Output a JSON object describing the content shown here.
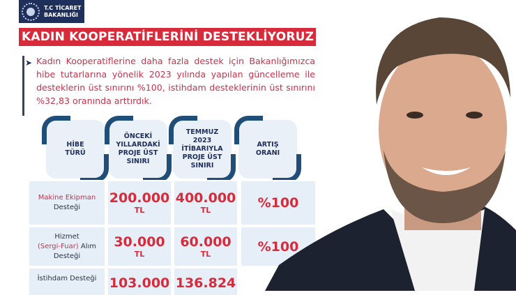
{
  "logo": {
    "line1": "T.C TİCARET",
    "line2": "BAKANLIĞI"
  },
  "banner": "KADIN KOOPERATİFLERİNİ DESTEKLİYORUZ",
  "intro": "Kadın Kooperatiflerine daha fazla destek için Bakanlığımızca hibe tutarlarına yönelik 2023 yılında yapılan güncelleme ile desteklerin üst sınırını %100, istihdam desteklerinin üst sınırını %32,83 oranında arttırdık.",
  "table": {
    "headers": [
      "HİBE TÜRÜ",
      "ÖNCEKİ YILLARDAKİ PROJE ÜST SINIRI",
      "TEMMUZ 2023 İTİBARIYLA PROJE ÜST SINIRI",
      "ARTIŞ ORANI"
    ],
    "rows": [
      {
        "type_a": "Makine Ekipman",
        "type_b": "Desteği",
        "prev": "200.000",
        "prev_unit": "TL",
        "new": "400.000",
        "new_unit": "TL",
        "rate": "%100"
      },
      {
        "type_a": "Hizmet",
        "type_r": "(Sergi-Fuar)",
        "type_c": "Alım",
        "type_b": "Desteği",
        "prev": "30.000",
        "prev_unit": "TL",
        "new": "60.000",
        "new_unit": "TL",
        "rate": "%100"
      },
      {
        "type_a": "İstihdam Desteği",
        "prev": "103.000",
        "new": "136.824"
      }
    ]
  },
  "colors": {
    "accent": "#d72a3a",
    "navy": "#1f2f5c",
    "text": "#c4344c"
  }
}
